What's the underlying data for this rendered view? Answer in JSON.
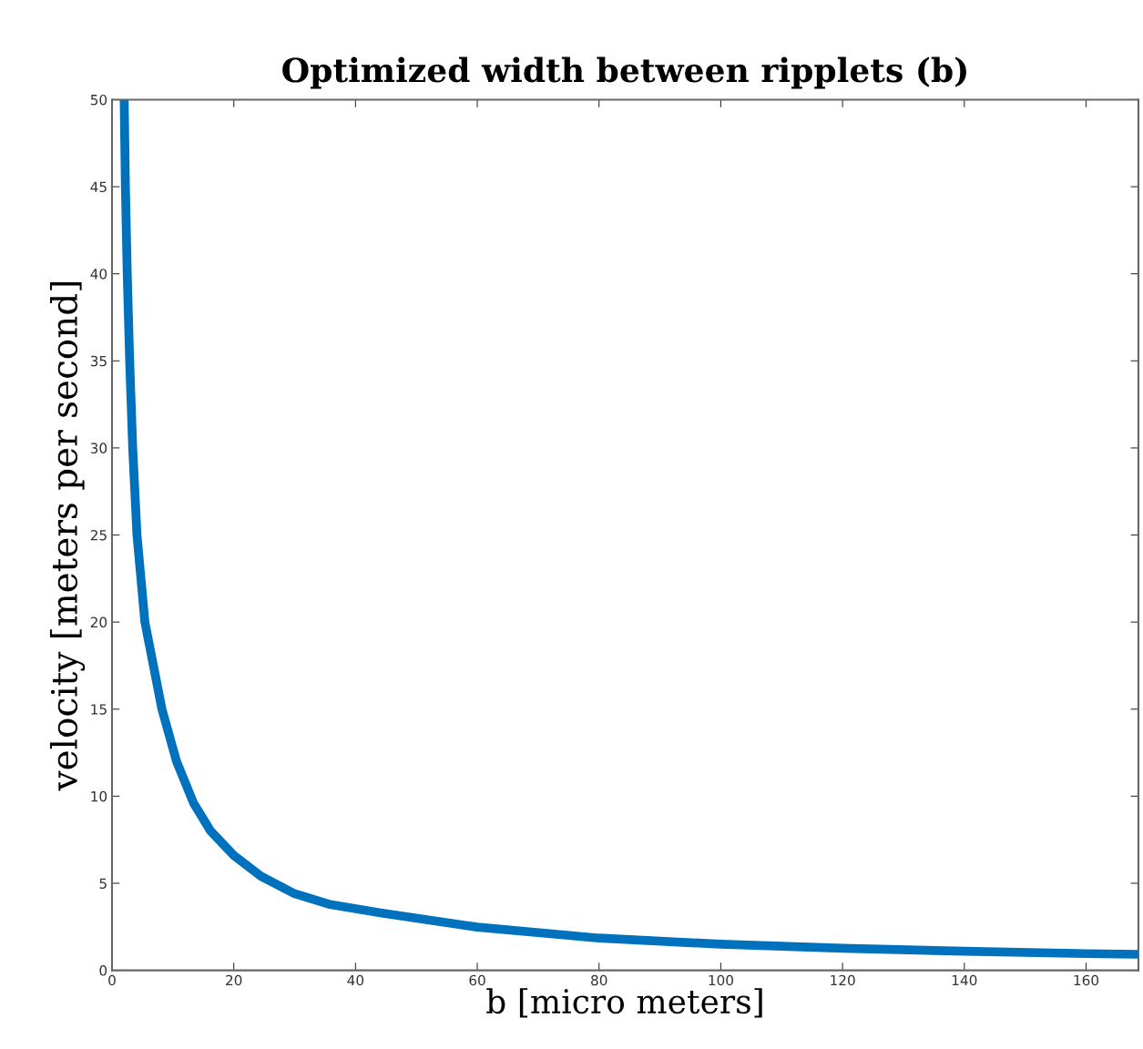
{
  "chart_data": {
    "type": "line",
    "title": "Optimized width between ripplets (b)",
    "xlabel": "b [micro meters]",
    "ylabel": "velocity [meters per second]",
    "x": [
      2.0,
      2.2,
      2.5,
      2.9,
      3.4,
      4.1,
      5.4,
      8.2,
      9.4,
      10.6,
      13.4,
      16.2,
      20,
      24.5,
      30,
      35.6,
      44.1,
      60,
      80,
      100,
      120,
      140,
      160,
      168.5
    ],
    "series": [
      {
        "color": "#0072bd",
        "values": [
          50,
          45,
          40,
          35,
          30,
          25,
          20,
          15,
          13.5,
          12.0,
          9.6,
          8.0,
          6.6,
          5.4,
          4.4,
          3.8,
          3.3,
          2.48,
          1.85,
          1.5,
          1.27,
          1.1,
          0.96,
          0.92
        ]
      }
    ],
    "xlim": [
      0,
      168.6
    ],
    "ylim": [
      0,
      50
    ],
    "xticks": [
      0,
      20,
      40,
      60,
      80,
      100,
      120,
      140,
      160
    ],
    "yticks": [
      0,
      5,
      10,
      15,
      20,
      25,
      30,
      35,
      40,
      45,
      50
    ],
    "grid": false,
    "marker": "none",
    "line_style": "solid"
  }
}
